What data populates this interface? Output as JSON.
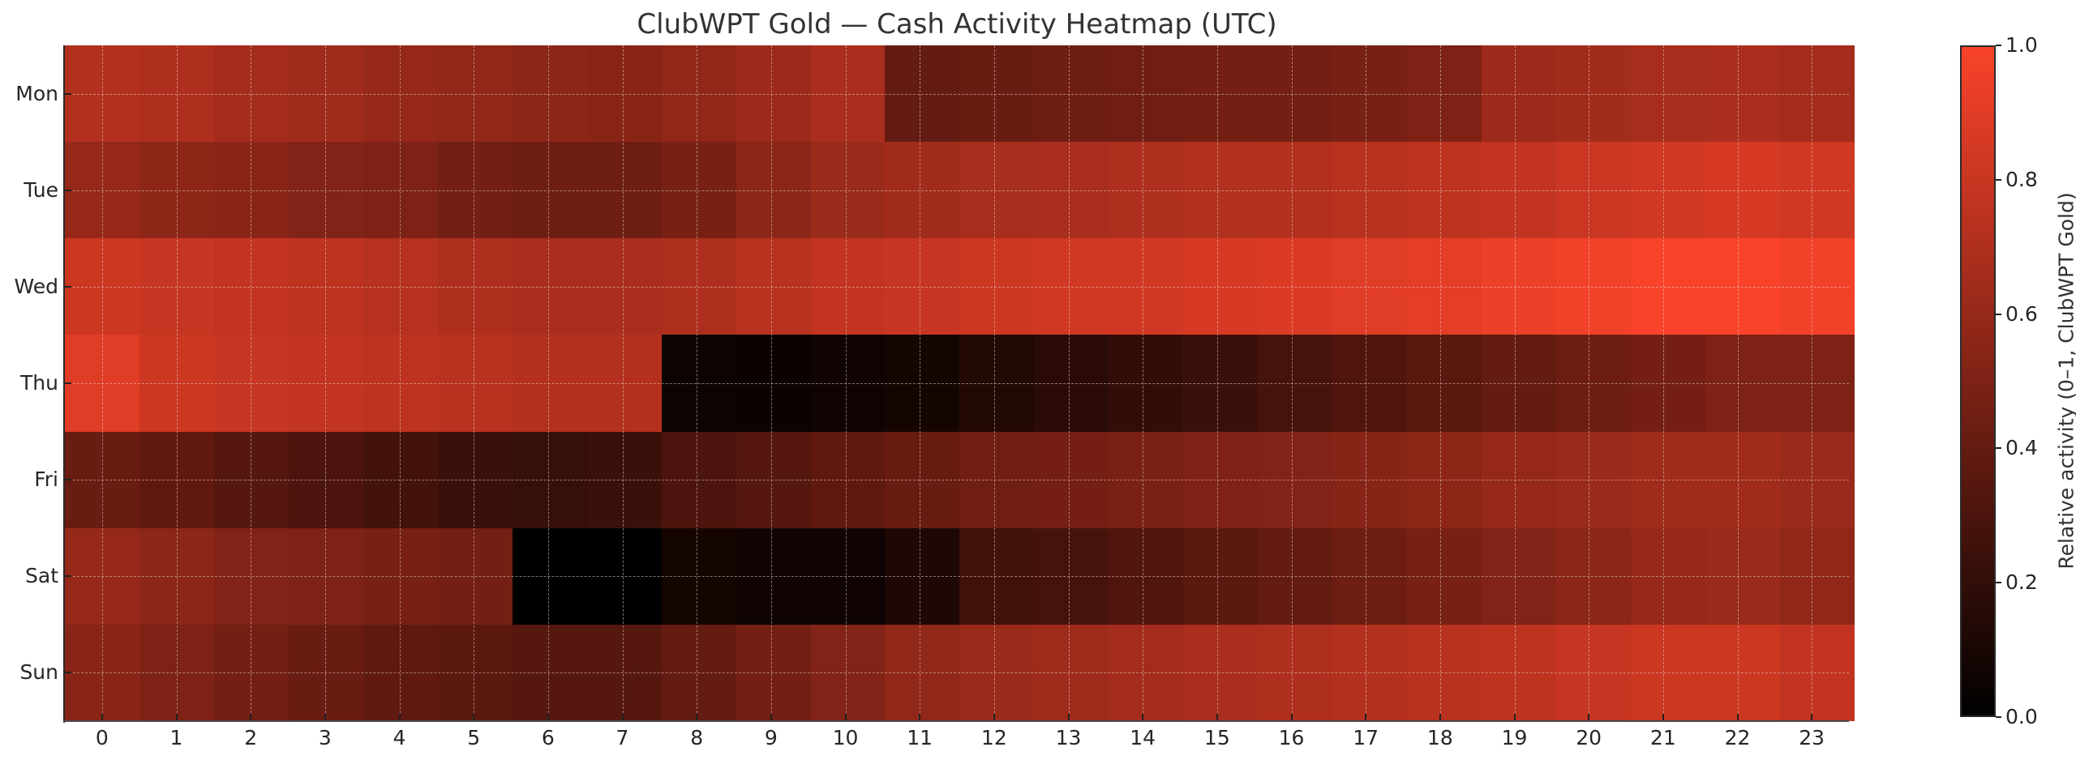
{
  "chart_data": {
    "type": "heatmap",
    "title": "ClubWPT Gold — Cash Activity Heatmap (UTC)",
    "xlabel": "",
    "ylabel": "",
    "x": [
      0,
      1,
      2,
      3,
      4,
      5,
      6,
      7,
      8,
      9,
      10,
      11,
      12,
      13,
      14,
      15,
      16,
      17,
      18,
      19,
      20,
      21,
      22,
      23
    ],
    "y": [
      "Mon",
      "Tue",
      "Wed",
      "Thu",
      "Fri",
      "Sat",
      "Sun"
    ],
    "values": [
      [
        0.72,
        0.7,
        0.66,
        0.64,
        0.6,
        0.58,
        0.56,
        0.55,
        0.58,
        0.63,
        0.68,
        0.4,
        0.42,
        0.44,
        0.45,
        0.46,
        0.46,
        0.48,
        0.5,
        0.63,
        0.65,
        0.67,
        0.68,
        0.66
      ],
      [
        0.6,
        0.57,
        0.55,
        0.52,
        0.5,
        0.46,
        0.44,
        0.44,
        0.48,
        0.56,
        0.62,
        0.65,
        0.67,
        0.68,
        0.7,
        0.71,
        0.72,
        0.74,
        0.76,
        0.78,
        0.81,
        0.84,
        0.86,
        0.84
      ],
      [
        0.82,
        0.8,
        0.78,
        0.76,
        0.73,
        0.7,
        0.68,
        0.68,
        0.7,
        0.74,
        0.78,
        0.8,
        0.82,
        0.84,
        0.84,
        0.86,
        0.88,
        0.9,
        0.92,
        0.95,
        0.97,
        1.0,
        1.0,
        0.97
      ],
      [
        0.9,
        0.82,
        0.8,
        0.78,
        0.76,
        0.74,
        0.72,
        0.72,
        0.05,
        0.04,
        0.06,
        0.08,
        0.14,
        0.17,
        0.2,
        0.24,
        0.28,
        0.32,
        0.36,
        0.4,
        0.44,
        0.47,
        0.5,
        0.5
      ],
      [
        0.42,
        0.38,
        0.34,
        0.3,
        0.27,
        0.24,
        0.22,
        0.24,
        0.3,
        0.34,
        0.38,
        0.42,
        0.45,
        0.47,
        0.49,
        0.51,
        0.52,
        0.54,
        0.57,
        0.6,
        0.62,
        0.64,
        0.65,
        0.62
      ],
      [
        0.6,
        0.56,
        0.52,
        0.5,
        0.48,
        0.46,
        0.0,
        0.0,
        0.08,
        0.06,
        0.06,
        0.12,
        0.26,
        0.28,
        0.32,
        0.36,
        0.4,
        0.44,
        0.48,
        0.52,
        0.56,
        0.6,
        0.62,
        0.58
      ],
      [
        0.55,
        0.5,
        0.46,
        0.42,
        0.38,
        0.36,
        0.34,
        0.34,
        0.4,
        0.46,
        0.52,
        0.58,
        0.62,
        0.64,
        0.66,
        0.68,
        0.7,
        0.72,
        0.74,
        0.76,
        0.8,
        0.82,
        0.82,
        0.78
      ]
    ],
    "vmin": 0.0,
    "vmax": 1.0,
    "colormap": {
      "low": "#000000",
      "high": "#F9432A"
    },
    "colorbar": {
      "label": "Relative activity (0–1, ClubWPT Gold)",
      "ticks": [
        "0.0",
        "0.2",
        "0.4",
        "0.6",
        "0.8",
        "1.0"
      ]
    },
    "grid": true
  }
}
